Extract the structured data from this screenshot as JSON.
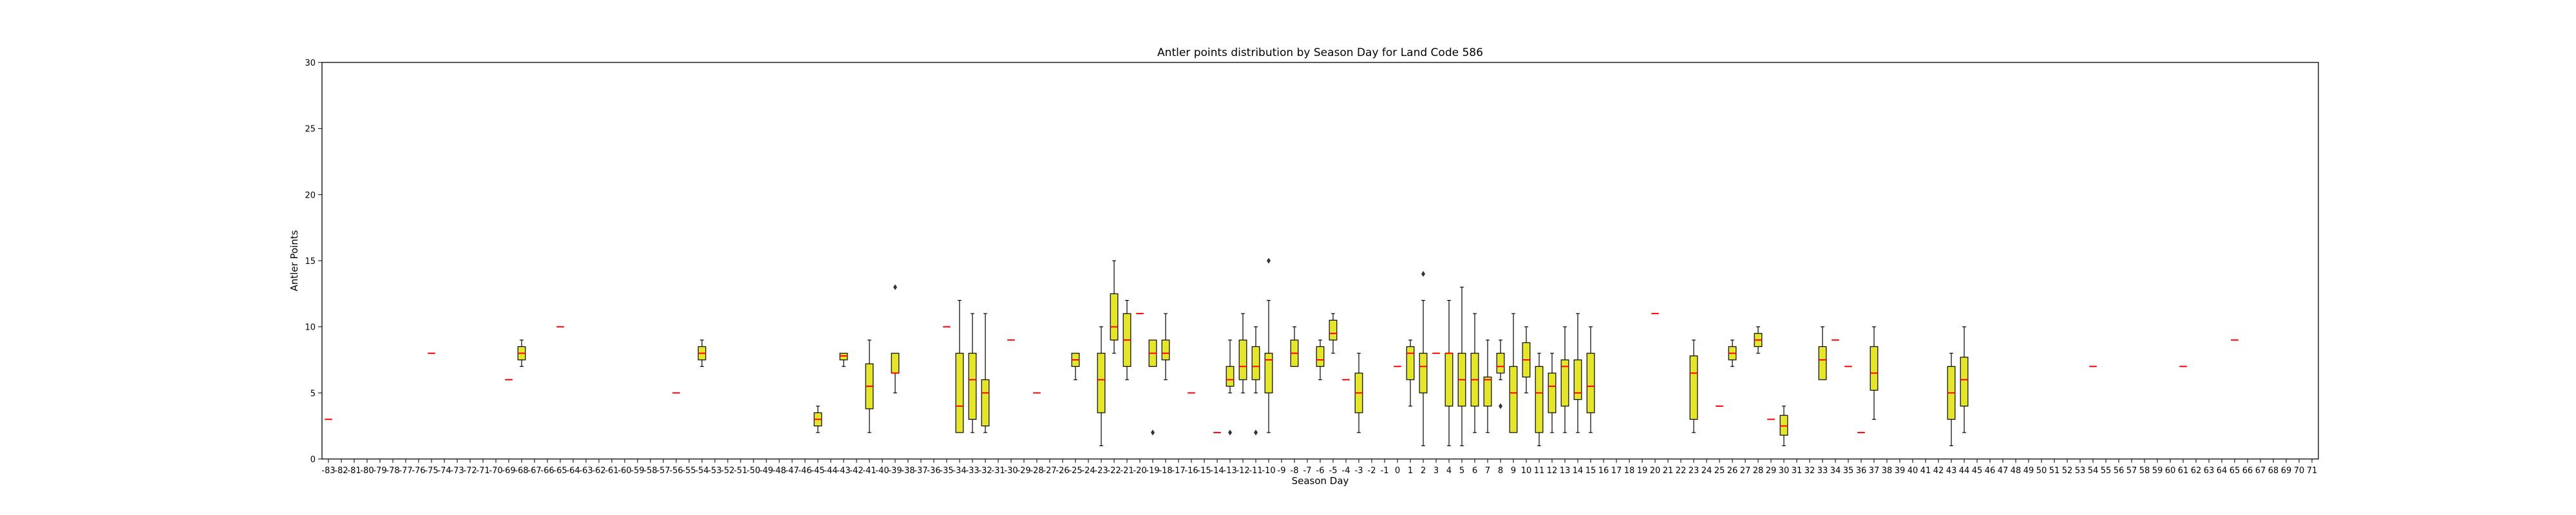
{
  "chart_data": {
    "type": "box",
    "title": "Antler points distribution by Season Day for Land Code 586",
    "xlabel": "Season Day",
    "ylabel": "Antler Points",
    "ylim": [
      0,
      30
    ],
    "yticks": [
      0,
      5,
      10,
      15,
      20,
      25,
      30
    ],
    "xcategories_range": [
      -83,
      71
    ],
    "grid": false,
    "legend": "none",
    "colors": {
      "box_fill": "#e6e629",
      "box_edge": "#000000",
      "median": "#ff0000",
      "whisker": "#000000",
      "axis": "#000000"
    },
    "boxes": [
      {
        "day": -83,
        "q1": 3,
        "median": 3,
        "q3": 3,
        "wlo": 3,
        "whi": 3
      },
      {
        "day": -75,
        "q1": 8,
        "median": 8,
        "q3": 8,
        "wlo": 8,
        "whi": 8
      },
      {
        "day": -69,
        "q1": 6,
        "median": 6,
        "q3": 6,
        "wlo": 6,
        "whi": 6
      },
      {
        "day": -68,
        "q1": 7.5,
        "median": 8,
        "q3": 8.5,
        "wlo": 7,
        "whi": 9
      },
      {
        "day": -65,
        "q1": 10,
        "median": 10,
        "q3": 10,
        "wlo": 10,
        "whi": 10
      },
      {
        "day": -56,
        "q1": 5,
        "median": 5,
        "q3": 5,
        "wlo": 5,
        "whi": 5
      },
      {
        "day": -54,
        "q1": 7.5,
        "median": 8,
        "q3": 8.5,
        "wlo": 7,
        "whi": 9
      },
      {
        "day": -45,
        "q1": 2.5,
        "median": 3,
        "q3": 3.5,
        "wlo": 2,
        "whi": 4
      },
      {
        "day": -43,
        "q1": 7.5,
        "median": 7.8,
        "q3": 8,
        "wlo": 7,
        "whi": 8
      },
      {
        "day": -41,
        "q1": 3.8,
        "median": 5.5,
        "q3": 7.2,
        "wlo": 2,
        "whi": 9
      },
      {
        "day": -39,
        "q1": 6.5,
        "median": 6.5,
        "q3": 8,
        "wlo": 5,
        "whi": 8,
        "outliers": [
          13
        ]
      },
      {
        "day": -35,
        "q1": 10,
        "median": 10,
        "q3": 10,
        "wlo": 10,
        "whi": 10
      },
      {
        "day": -34,
        "q1": 2,
        "median": 4,
        "q3": 8,
        "wlo": 2,
        "whi": 12
      },
      {
        "day": -33,
        "q1": 3,
        "median": 6,
        "q3": 8,
        "wlo": 2,
        "whi": 11
      },
      {
        "day": -32,
        "q1": 2.5,
        "median": 5,
        "q3": 6,
        "wlo": 2,
        "whi": 11
      },
      {
        "day": -30,
        "q1": 9,
        "median": 9,
        "q3": 9,
        "wlo": 9,
        "whi": 9
      },
      {
        "day": -28,
        "q1": 5,
        "median": 5,
        "q3": 5,
        "wlo": 5,
        "whi": 5
      },
      {
        "day": -25,
        "q1": 7,
        "median": 7.5,
        "q3": 8,
        "wlo": 6,
        "whi": 8
      },
      {
        "day": -23,
        "q1": 3.5,
        "median": 6,
        "q3": 8,
        "wlo": 1,
        "whi": 10
      },
      {
        "day": -22,
        "q1": 9,
        "median": 10,
        "q3": 12.5,
        "wlo": 8,
        "whi": 15
      },
      {
        "day": -21,
        "q1": 7,
        "median": 9,
        "q3": 11,
        "wlo": 6,
        "whi": 12
      },
      {
        "day": -20,
        "q1": 11,
        "median": 11,
        "q3": 11,
        "wlo": 11,
        "whi": 11
      },
      {
        "day": -19,
        "q1": 7,
        "median": 8,
        "q3": 9,
        "wlo": 7,
        "whi": 9,
        "outliers": [
          2
        ]
      },
      {
        "day": -18,
        "q1": 7.5,
        "median": 8,
        "q3": 9,
        "wlo": 6,
        "whi": 11
      },
      {
        "day": -16,
        "q1": 5,
        "median": 5,
        "q3": 5,
        "wlo": 5,
        "whi": 5
      },
      {
        "day": -14,
        "q1": 2,
        "median": 2,
        "q3": 2,
        "wlo": 2,
        "whi": 2
      },
      {
        "day": -13,
        "q1": 5.5,
        "median": 6,
        "q3": 7,
        "wlo": 5,
        "whi": 9,
        "outliers": [
          2
        ]
      },
      {
        "day": -12,
        "q1": 6,
        "median": 7,
        "q3": 9,
        "wlo": 5,
        "whi": 11
      },
      {
        "day": -11,
        "q1": 6,
        "median": 7,
        "q3": 8.5,
        "wlo": 5,
        "whi": 10,
        "outliers": [
          2
        ]
      },
      {
        "day": -10,
        "q1": 5,
        "median": 7.5,
        "q3": 8,
        "wlo": 2,
        "whi": 12,
        "outliers": [
          15
        ]
      },
      {
        "day": -8,
        "q1": 7,
        "median": 8,
        "q3": 9,
        "wlo": 7,
        "whi": 10
      },
      {
        "day": -6,
        "q1": 7,
        "median": 7.5,
        "q3": 8.5,
        "wlo": 6,
        "whi": 9
      },
      {
        "day": -5,
        "q1": 9,
        "median": 9.5,
        "q3": 10.5,
        "wlo": 8,
        "whi": 11
      },
      {
        "day": -4,
        "q1": 6,
        "median": 6,
        "q3": 6,
        "wlo": 6,
        "whi": 6
      },
      {
        "day": -3,
        "q1": 3.5,
        "median": 5,
        "q3": 6.5,
        "wlo": 2,
        "whi": 8
      },
      {
        "day": 0,
        "q1": 7,
        "median": 7,
        "q3": 7,
        "wlo": 7,
        "whi": 7
      },
      {
        "day": 1,
        "q1": 6,
        "median": 8,
        "q3": 8.5,
        "wlo": 4,
        "whi": 9
      },
      {
        "day": 2,
        "q1": 5,
        "median": 7,
        "q3": 8,
        "wlo": 1,
        "whi": 12,
        "outliers": [
          14
        ]
      },
      {
        "day": 3,
        "q1": 8,
        "median": 8,
        "q3": 8,
        "wlo": 8,
        "whi": 8
      },
      {
        "day": 4,
        "q1": 4,
        "median": 8,
        "q3": 8,
        "wlo": 1,
        "whi": 12
      },
      {
        "day": 5,
        "q1": 4,
        "median": 6,
        "q3": 8,
        "wlo": 1,
        "whi": 13
      },
      {
        "day": 6,
        "q1": 4,
        "median": 6,
        "q3": 8,
        "wlo": 2,
        "whi": 11
      },
      {
        "day": 7,
        "q1": 4,
        "median": 6,
        "q3": 6.2,
        "wlo": 2,
        "whi": 9
      },
      {
        "day": 8,
        "q1": 6.5,
        "median": 7,
        "q3": 8,
        "wlo": 6,
        "whi": 9,
        "outliers": [
          4
        ]
      },
      {
        "day": 9,
        "q1": 2,
        "median": 5,
        "q3": 7,
        "wlo": 2,
        "whi": 11
      },
      {
        "day": 10,
        "q1": 6.2,
        "median": 7.5,
        "q3": 8.8,
        "wlo": 5,
        "whi": 10
      },
      {
        "day": 11,
        "q1": 2,
        "median": 5,
        "q3": 7,
        "wlo": 1,
        "whi": 8
      },
      {
        "day": 12,
        "q1": 3.5,
        "median": 5.5,
        "q3": 6.5,
        "wlo": 2,
        "whi": 8
      },
      {
        "day": 13,
        "q1": 4,
        "median": 7,
        "q3": 7.5,
        "wlo": 2,
        "whi": 10
      },
      {
        "day": 14,
        "q1": 4.5,
        "median": 5,
        "q3": 7.5,
        "wlo": 2,
        "whi": 11
      },
      {
        "day": 15,
        "q1": 3.5,
        "median": 5.5,
        "q3": 8,
        "wlo": 2,
        "whi": 10
      },
      {
        "day": 20,
        "q1": 11,
        "median": 11,
        "q3": 11,
        "wlo": 11,
        "whi": 11
      },
      {
        "day": 23,
        "q1": 3,
        "median": 6.5,
        "q3": 7.8,
        "wlo": 2,
        "whi": 9
      },
      {
        "day": 25,
        "q1": 4,
        "median": 4,
        "q3": 4,
        "wlo": 4,
        "whi": 4
      },
      {
        "day": 26,
        "q1": 7.5,
        "median": 8,
        "q3": 8.5,
        "wlo": 7,
        "whi": 9
      },
      {
        "day": 28,
        "q1": 8.5,
        "median": 9,
        "q3": 9.5,
        "wlo": 8,
        "whi": 10
      },
      {
        "day": 29,
        "q1": 3,
        "median": 3,
        "q3": 3,
        "wlo": 3,
        "whi": 3
      },
      {
        "day": 30,
        "q1": 1.8,
        "median": 2.5,
        "q3": 3.3,
        "wlo": 1,
        "whi": 4
      },
      {
        "day": 33,
        "q1": 6,
        "median": 7.5,
        "q3": 8.5,
        "wlo": 6,
        "whi": 10
      },
      {
        "day": 34,
        "q1": 9,
        "median": 9,
        "q3": 9,
        "wlo": 9,
        "whi": 9
      },
      {
        "day": 35,
        "q1": 7,
        "median": 7,
        "q3": 7,
        "wlo": 7,
        "whi": 7
      },
      {
        "day": 36,
        "q1": 2,
        "median": 2,
        "q3": 2,
        "wlo": 2,
        "whi": 2
      },
      {
        "day": 37,
        "q1": 5.2,
        "median": 6.5,
        "q3": 8.5,
        "wlo": 3,
        "whi": 10
      },
      {
        "day": 43,
        "q1": 3,
        "median": 5,
        "q3": 7,
        "wlo": 1,
        "whi": 8
      },
      {
        "day": 44,
        "q1": 4,
        "median": 6,
        "q3": 7.7,
        "wlo": 2,
        "whi": 10
      },
      {
        "day": 54,
        "q1": 7,
        "median": 7,
        "q3": 7,
        "wlo": 7,
        "whi": 7
      },
      {
        "day": 61,
        "q1": 7,
        "median": 7,
        "q3": 7,
        "wlo": 7,
        "whi": 7
      },
      {
        "day": 65,
        "q1": 9,
        "median": 9,
        "q3": 9,
        "wlo": 9,
        "whi": 9
      }
    ]
  }
}
